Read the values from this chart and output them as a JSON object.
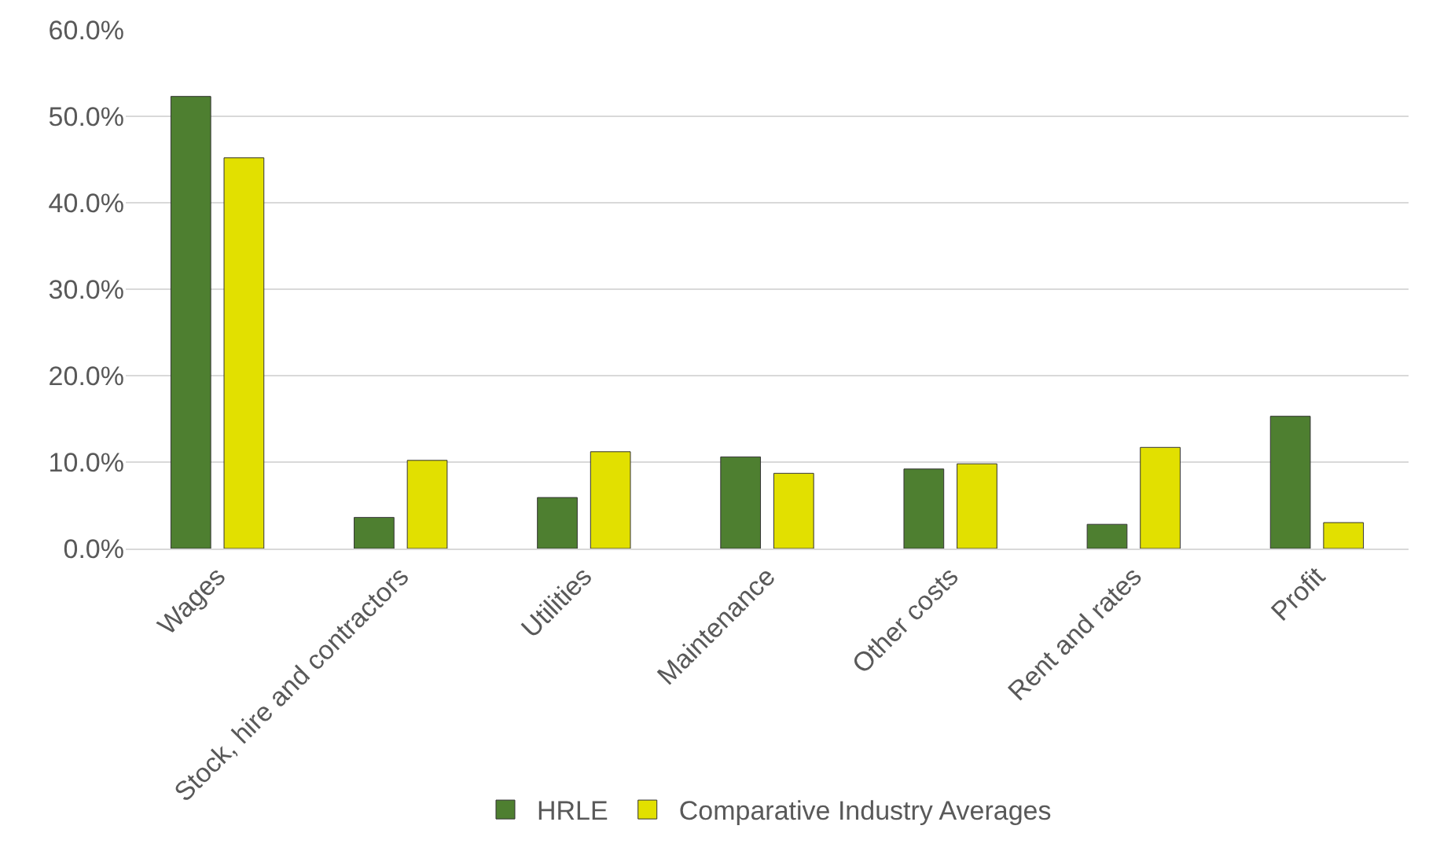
{
  "chart_data": {
    "type": "bar",
    "categories": [
      "Wages",
      "Stock, hire and contractors",
      "Utilities",
      "Maintenance",
      "Other costs",
      "Rent and rates",
      "Profit"
    ],
    "series": [
      {
        "name": "HRLE",
        "color": "#4e7f30",
        "values": [
          52.3,
          3.6,
          5.9,
          10.6,
          9.2,
          2.8,
          15.3
        ]
      },
      {
        "name": "Comparative Industry Averages",
        "color": "#e2e000",
        "values": [
          45.2,
          10.2,
          11.2,
          8.7,
          9.8,
          11.7,
          3.0
        ]
      }
    ],
    "ylim": [
      0,
      60
    ],
    "yticks": [
      {
        "value": 0,
        "label": "0.0%"
      },
      {
        "value": 10,
        "label": "10.0%"
      },
      {
        "value": 20,
        "label": "20.0%"
      },
      {
        "value": 30,
        "label": "30.0%"
      },
      {
        "value": 40,
        "label": "40.0%"
      },
      {
        "value": 50,
        "label": "50.0%"
      },
      {
        "value": 60,
        "label": "60.0%"
      }
    ],
    "grid": "y",
    "legend": "bottom"
  }
}
